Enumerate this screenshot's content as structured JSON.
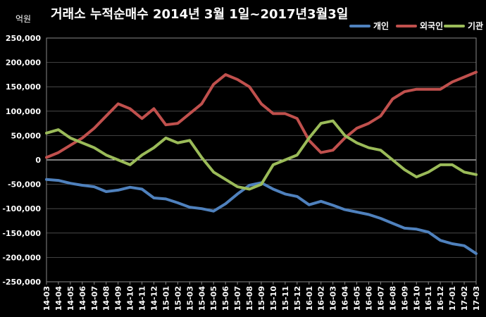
{
  "chart_data": {
    "type": "line",
    "title": "거래소 누적순매수 2014년 3월 1일~2017년3월3일",
    "unit_label": "억원",
    "ylim": [
      -250000,
      250000
    ],
    "yticks": [
      250000,
      200000,
      150000,
      100000,
      50000,
      0,
      -50000,
      -100000,
      -150000,
      -200000,
      -250000
    ],
    "ytick_labels": [
      "250,000",
      "200,000",
      "150,000",
      "100,000",
      "50,000",
      "0",
      "-50,000",
      "-100,000",
      "-150,000",
      "-200,000",
      "-250,000"
    ],
    "categories": [
      "14-03",
      "14-04",
      "14-05",
      "14-06",
      "14-07",
      "14-08",
      "14-09",
      "14-10",
      "14-11",
      "14-12",
      "15-01",
      "15-02",
      "15-03",
      "15-04",
      "15-05",
      "15-06",
      "15-07",
      "15-08",
      "15-09",
      "15-10",
      "15-11",
      "15-12",
      "16-01",
      "16-02",
      "16-03",
      "16-04",
      "16-05",
      "16-06",
      "16-07",
      "16-08",
      "16-09",
      "16-10",
      "16-11",
      "16-12",
      "17-01",
      "17-02",
      "17-03"
    ],
    "grid": true,
    "legend_position": "top-right",
    "series": [
      {
        "name": "개인",
        "color": "#4f81bd",
        "values": [
          -40000,
          -42000,
          -48000,
          -52000,
          -55000,
          -65000,
          -62000,
          -56000,
          -60000,
          -78000,
          -80000,
          -88000,
          -97000,
          -100000,
          -105000,
          -90000,
          -70000,
          -52000,
          -47000,
          -60000,
          -70000,
          -75000,
          -92000,
          -85000,
          -93000,
          -102000,
          -107000,
          -112000,
          -120000,
          -130000,
          -140000,
          -142000,
          -148000,
          -165000,
          -172000,
          -176000,
          -192000
        ]
      },
      {
        "name": "외국인",
        "color": "#c0504d",
        "values": [
          5000,
          15000,
          30000,
          45000,
          65000,
          90000,
          115000,
          105000,
          85000,
          105000,
          72000,
          75000,
          95000,
          115000,
          155000,
          175000,
          165000,
          150000,
          115000,
          95000,
          95000,
          85000,
          40000,
          15000,
          20000,
          45000,
          65000,
          75000,
          90000,
          125000,
          140000,
          145000,
          145000,
          145000,
          160000,
          170000,
          180000
        ]
      },
      {
        "name": "기관",
        "color": "#9bbb59",
        "values": [
          55000,
          62000,
          45000,
          35000,
          25000,
          10000,
          0,
          -10000,
          10000,
          25000,
          45000,
          35000,
          40000,
          5000,
          -25000,
          -40000,
          -55000,
          -60000,
          -50000,
          -10000,
          0,
          10000,
          45000,
          75000,
          80000,
          50000,
          35000,
          25000,
          20000,
          0,
          -20000,
          -35000,
          -25000,
          -10000,
          -10000,
          -25000,
          -30000
        ]
      }
    ]
  }
}
